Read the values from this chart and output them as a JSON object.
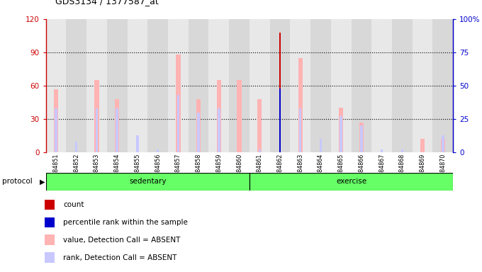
{
  "title": "GDS3134 / 1377587_at",
  "samples": [
    "GSM184851",
    "GSM184852",
    "GSM184853",
    "GSM184854",
    "GSM184855",
    "GSM184856",
    "GSM184857",
    "GSM184858",
    "GSM184859",
    "GSM184860",
    "GSM184861",
    "GSM184862",
    "GSM184863",
    "GSM184864",
    "GSM184865",
    "GSM184866",
    "GSM184867",
    "GSM184868",
    "GSM184869",
    "GSM184870"
  ],
  "value_absent": [
    57,
    0,
    65,
    48,
    0,
    0,
    88,
    48,
    65,
    65,
    48,
    0,
    85,
    0,
    40,
    27,
    0,
    0,
    12,
    12
  ],
  "rank_absent": [
    33,
    8,
    33,
    33,
    13,
    2,
    43,
    30,
    33,
    0,
    2,
    0,
    33,
    10,
    27,
    20,
    2,
    2,
    0,
    13
  ],
  "count_bar": [
    0,
    0,
    0,
    0,
    0,
    0,
    0,
    0,
    0,
    0,
    0,
    108,
    0,
    0,
    0,
    0,
    0,
    0,
    0,
    0
  ],
  "percentile_bar": [
    0,
    0,
    0,
    0,
    0,
    0,
    0,
    0,
    0,
    0,
    0,
    48,
    0,
    0,
    0,
    0,
    0,
    0,
    0,
    0
  ],
  "ylim_left": [
    0,
    120
  ],
  "ylim_right": [
    0,
    100
  ],
  "left_yticks": [
    0,
    30,
    60,
    90,
    120
  ],
  "right_yticks": [
    0,
    25,
    50,
    75,
    100
  ],
  "left_axis_color": "#cc0000",
  "right_axis_color": "#0000cc",
  "color_value_absent": "#ffb3b3",
  "color_rank_absent": "#c8c8ff",
  "color_count": "#cc0000",
  "color_percentile": "#0000cc",
  "bg_color": "#e8e8e8",
  "col_bg_even": "#d8d8d8",
  "col_bg_odd": "#e8e8e8",
  "protocol_color": "#66ff66",
  "sedentary_count": 10,
  "exercise_count": 10,
  "legend_items": [
    {
      "color": "#cc0000",
      "label": "count"
    },
    {
      "color": "#0000cc",
      "label": "percentile rank within the sample"
    },
    {
      "color": "#ffb3b3",
      "label": "value, Detection Call = ABSENT"
    },
    {
      "color": "#c8c8ff",
      "label": "rank, Detection Call = ABSENT"
    }
  ]
}
